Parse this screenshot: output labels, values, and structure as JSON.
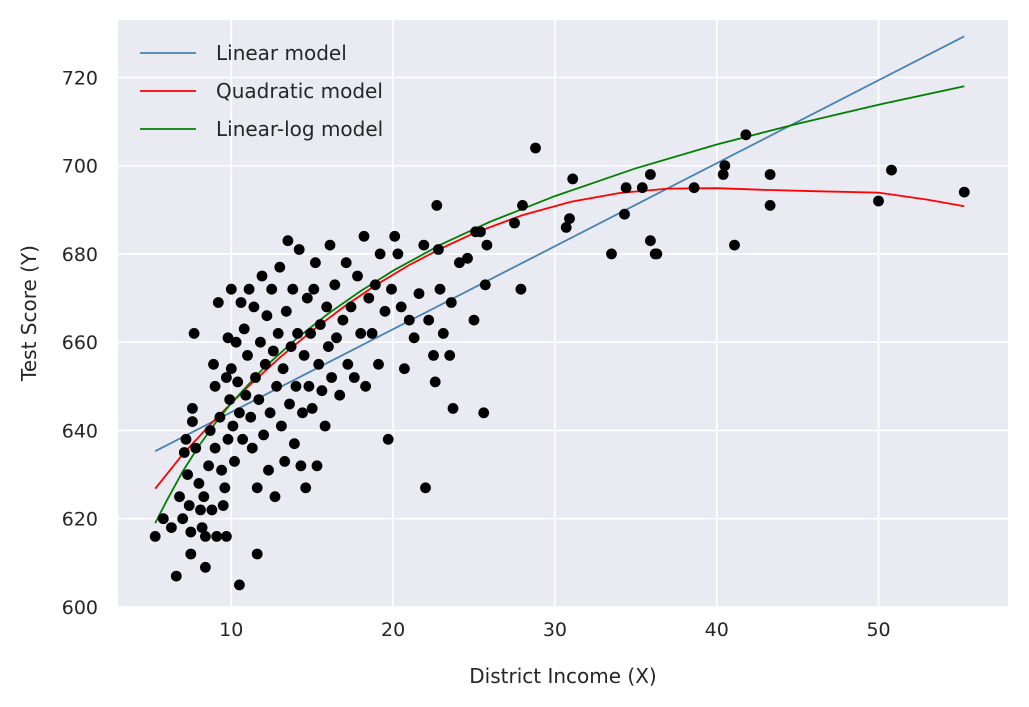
{
  "chart_data": {
    "type": "scatter",
    "xlabel": "District Income (X)",
    "ylabel": "Test Score (Y)",
    "xlim": [
      3,
      58
    ],
    "ylim": [
      600,
      733
    ],
    "xticks": [
      10,
      20,
      30,
      40,
      50
    ],
    "yticks": [
      600,
      620,
      640,
      660,
      680,
      700,
      720
    ],
    "grid": true,
    "background": "#eaeaf2",
    "legend_position": "top-left",
    "points_color": "#000000",
    "points": [
      [
        5.3,
        616
      ],
      [
        5.8,
        620
      ],
      [
        6.3,
        618
      ],
      [
        6.6,
        607
      ],
      [
        6.8,
        625
      ],
      [
        7.0,
        620
      ],
      [
        7.1,
        635
      ],
      [
        7.2,
        638
      ],
      [
        7.3,
        630
      ],
      [
        7.4,
        623
      ],
      [
        7.5,
        617
      ],
      [
        7.5,
        612
      ],
      [
        7.6,
        645
      ],
      [
        7.6,
        642
      ],
      [
        7.7,
        662
      ],
      [
        7.8,
        636
      ],
      [
        8.0,
        628
      ],
      [
        8.1,
        622
      ],
      [
        8.2,
        618
      ],
      [
        8.3,
        625
      ],
      [
        8.4,
        609
      ],
      [
        8.4,
        616
      ],
      [
        8.6,
        632
      ],
      [
        8.7,
        640
      ],
      [
        8.8,
        622
      ],
      [
        8.9,
        655
      ],
      [
        9.0,
        650
      ],
      [
        9.0,
        636
      ],
      [
        9.1,
        616
      ],
      [
        9.2,
        669
      ],
      [
        9.3,
        643
      ],
      [
        9.4,
        631
      ],
      [
        9.5,
        623
      ],
      [
        9.6,
        627
      ],
      [
        9.7,
        652
      ],
      [
        9.7,
        616
      ],
      [
        9.8,
        661
      ],
      [
        9.8,
        638
      ],
      [
        9.9,
        647
      ],
      [
        10.0,
        672
      ],
      [
        10.0,
        654
      ],
      [
        10.1,
        641
      ],
      [
        10.2,
        633
      ],
      [
        10.3,
        660
      ],
      [
        10.4,
        651
      ],
      [
        10.5,
        605
      ],
      [
        10.5,
        644
      ],
      [
        10.6,
        669
      ],
      [
        10.7,
        638
      ],
      [
        10.8,
        663
      ],
      [
        10.9,
        648
      ],
      [
        11.0,
        657
      ],
      [
        11.1,
        672
      ],
      [
        11.2,
        643
      ],
      [
        11.3,
        636
      ],
      [
        11.4,
        668
      ],
      [
        11.5,
        652
      ],
      [
        11.6,
        627
      ],
      [
        11.6,
        612
      ],
      [
        11.7,
        647
      ],
      [
        11.8,
        660
      ],
      [
        11.9,
        675
      ],
      [
        12.0,
        639
      ],
      [
        12.1,
        655
      ],
      [
        12.2,
        666
      ],
      [
        12.3,
        631
      ],
      [
        12.4,
        644
      ],
      [
        12.5,
        672
      ],
      [
        12.6,
        658
      ],
      [
        12.7,
        625
      ],
      [
        12.8,
        650
      ],
      [
        12.9,
        662
      ],
      [
        13.0,
        677
      ],
      [
        13.1,
        641
      ],
      [
        13.2,
        654
      ],
      [
        13.3,
        633
      ],
      [
        13.4,
        667
      ],
      [
        13.5,
        683
      ],
      [
        13.6,
        646
      ],
      [
        13.7,
        659
      ],
      [
        13.8,
        672
      ],
      [
        13.9,
        637
      ],
      [
        14.0,
        650
      ],
      [
        14.1,
        662
      ],
      [
        14.2,
        681
      ],
      [
        14.3,
        632
      ],
      [
        14.4,
        644
      ],
      [
        14.5,
        657
      ],
      [
        14.6,
        627
      ],
      [
        14.7,
        670
      ],
      [
        14.8,
        650
      ],
      [
        14.9,
        662
      ],
      [
        15.0,
        645
      ],
      [
        15.1,
        672
      ],
      [
        15.2,
        678
      ],
      [
        15.3,
        632
      ],
      [
        15.4,
        655
      ],
      [
        15.5,
        664
      ],
      [
        15.6,
        649
      ],
      [
        15.8,
        641
      ],
      [
        15.9,
        668
      ],
      [
        16.0,
        659
      ],
      [
        16.1,
        682
      ],
      [
        16.2,
        652
      ],
      [
        16.4,
        673
      ],
      [
        16.5,
        661
      ],
      [
        16.7,
        648
      ],
      [
        16.9,
        665
      ],
      [
        17.1,
        678
      ],
      [
        17.2,
        655
      ],
      [
        17.4,
        668
      ],
      [
        17.6,
        652
      ],
      [
        17.8,
        675
      ],
      [
        18.0,
        662
      ],
      [
        18.2,
        684
      ],
      [
        18.3,
        650
      ],
      [
        18.5,
        670
      ],
      [
        18.7,
        662
      ],
      [
        18.9,
        673
      ],
      [
        19.1,
        655
      ],
      [
        19.2,
        680
      ],
      [
        19.5,
        667
      ],
      [
        19.7,
        638
      ],
      [
        19.9,
        672
      ],
      [
        20.1,
        684
      ],
      [
        20.3,
        680
      ],
      [
        20.5,
        668
      ],
      [
        20.7,
        654
      ],
      [
        21.0,
        665
      ],
      [
        21.3,
        661
      ],
      [
        21.6,
        671
      ],
      [
        21.9,
        682
      ],
      [
        22.0,
        627
      ],
      [
        22.2,
        665
      ],
      [
        22.5,
        657
      ],
      [
        22.6,
        651
      ],
      [
        22.7,
        691
      ],
      [
        22.8,
        681
      ],
      [
        22.9,
        672
      ],
      [
        23.1,
        662
      ],
      [
        23.5,
        657
      ],
      [
        23.6,
        669
      ],
      [
        23.7,
        645
      ],
      [
        24.1,
        678
      ],
      [
        24.6,
        679
      ],
      [
        25.0,
        665
      ],
      [
        25.1,
        685
      ],
      [
        25.4,
        685
      ],
      [
        25.6,
        644
      ],
      [
        25.7,
        673
      ],
      [
        25.8,
        682
      ],
      [
        27.5,
        687
      ],
      [
        27.9,
        672
      ],
      [
        28.0,
        691
      ],
      [
        28.8,
        704
      ],
      [
        30.7,
        686
      ],
      [
        30.9,
        688
      ],
      [
        31.1,
        697
      ],
      [
        33.5,
        680
      ],
      [
        34.3,
        689
      ],
      [
        34.4,
        695
      ],
      [
        35.4,
        695
      ],
      [
        35.9,
        683
      ],
      [
        35.9,
        698
      ],
      [
        36.2,
        680
      ],
      [
        36.3,
        680
      ],
      [
        38.6,
        695
      ],
      [
        40.4,
        698
      ],
      [
        40.5,
        700
      ],
      [
        41.1,
        682
      ],
      [
        41.8,
        707
      ],
      [
        43.3,
        698
      ],
      [
        43.3,
        691
      ],
      [
        50.0,
        692
      ],
      [
        50.8,
        699
      ],
      [
        55.3,
        694
      ]
    ],
    "series": [
      {
        "name": "Linear model",
        "color": "#4682b4",
        "x": [
          5.3,
          55.3
        ],
        "y": [
          635.3,
          729.3
        ]
      },
      {
        "name": "Quadratic model",
        "color": "#ff0000",
        "x": [
          5.3,
          7,
          9,
          11,
          13,
          15,
          17,
          19,
          21,
          23,
          25,
          28,
          31,
          34,
          37,
          40,
          43,
          46,
          50,
          53,
          55.3
        ],
        "y": [
          626.8,
          634.6,
          642.5,
          649.8,
          656.5,
          662.6,
          668.1,
          673.1,
          677.5,
          681.3,
          684.7,
          688.8,
          691.8,
          693.8,
          694.8,
          694.9,
          694.5,
          694.2,
          693.9,
          692.3,
          690.8
        ]
      },
      {
        "name": "Linear-log model",
        "color": "#008000",
        "x": [
          5.3,
          6,
          7,
          8,
          9,
          10,
          12,
          14,
          16,
          18,
          20,
          23,
          26,
          30,
          35,
          40,
          45,
          50,
          55.3
        ],
        "y": [
          619,
          624,
          630.7,
          636.5,
          641.6,
          646.2,
          654.1,
          660.7,
          666.5,
          671.6,
          676.2,
          682.2,
          687.3,
          693.1,
          699.4,
          704.8,
          709.5,
          713.8,
          718
        ]
      }
    ]
  }
}
